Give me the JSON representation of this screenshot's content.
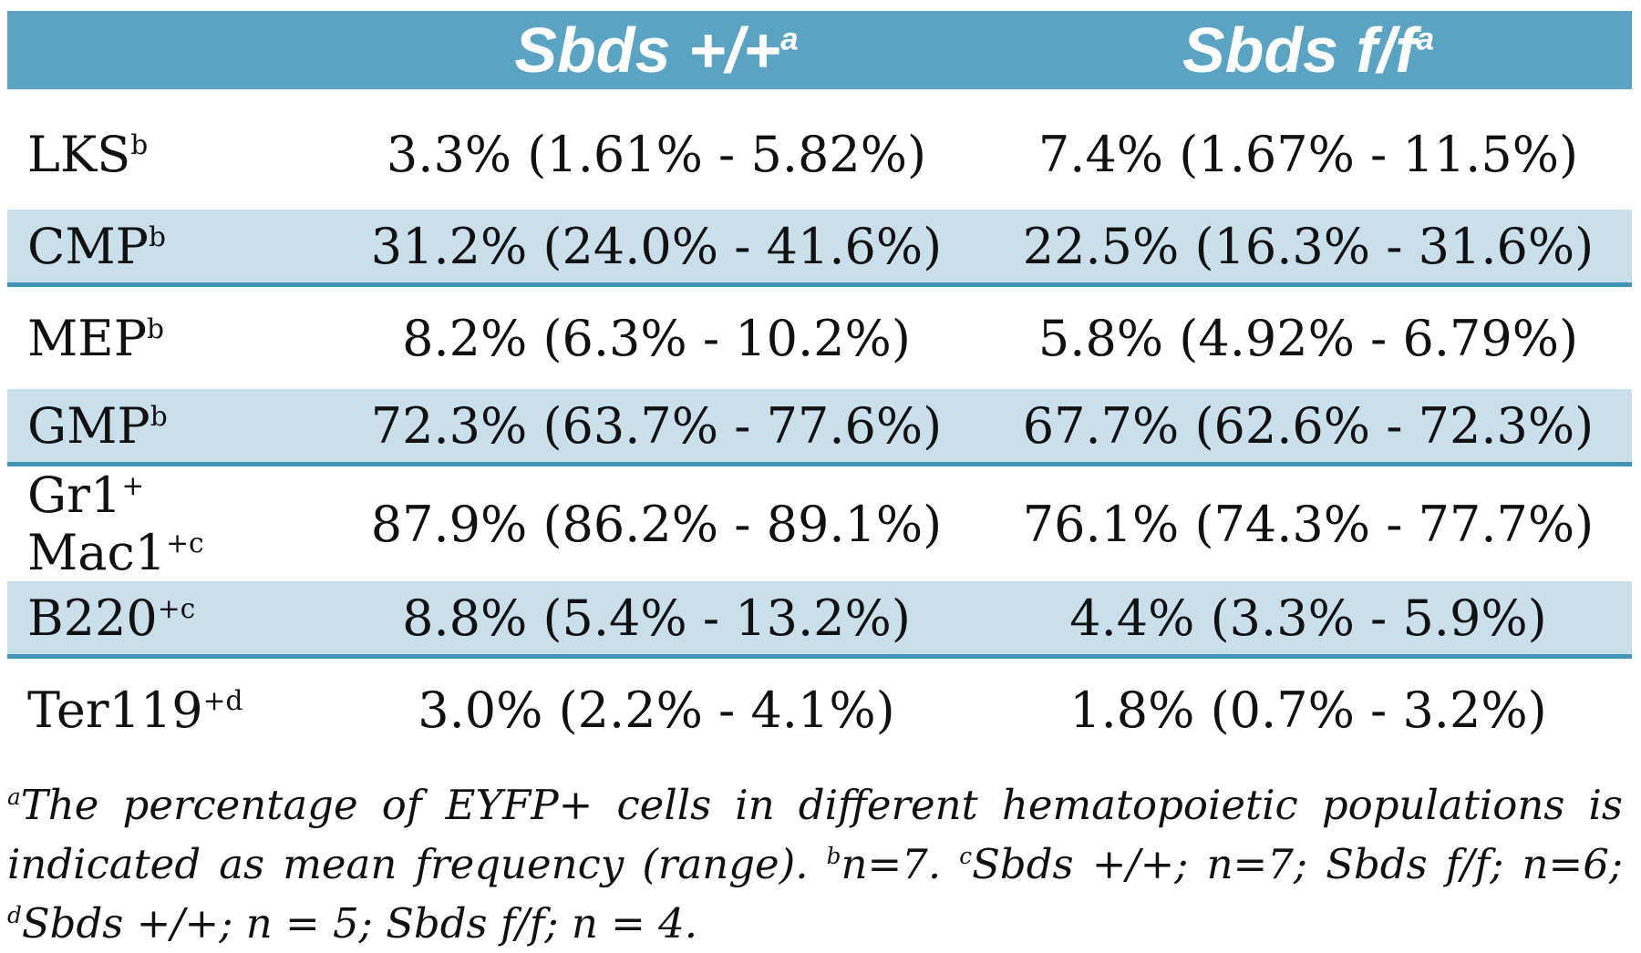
{
  "colors": {
    "header_bg": "#5AA3C2",
    "header_text": "#FFFFFF",
    "shaded_bg": "#C9E0EC",
    "divider": "#4293B5",
    "body_text": "#111111"
  },
  "table": {
    "columns": [
      {
        "parts": []
      },
      {
        "parts": [
          {
            "text": "Sbds +/+"
          },
          {
            "sup": "a"
          }
        ]
      },
      {
        "parts": [
          {
            "text": "Sbds f/f"
          },
          {
            "sup": "a"
          }
        ]
      }
    ],
    "rows": [
      {
        "label_parts": [
          {
            "text": "LKS"
          },
          {
            "sup": "b"
          }
        ],
        "values": [
          "3.3% (1.61% - 5.82%)",
          "7.4% (1.67% - 11.5%)"
        ],
        "shaded": false
      },
      {
        "label_parts": [
          {
            "text": "CMP"
          },
          {
            "sup": "b"
          }
        ],
        "values": [
          "31.2% (24.0% - 41.6%)",
          "22.5% (16.3% - 31.6%)"
        ],
        "shaded": true
      },
      {
        "label_parts": [
          {
            "text": "MEP"
          },
          {
            "sup": "b"
          }
        ],
        "values": [
          "8.2% (6.3% - 10.2%)",
          "5.8% (4.92% - 6.79%)"
        ],
        "shaded": false
      },
      {
        "label_parts": [
          {
            "text": "GMP"
          },
          {
            "sup": "b"
          }
        ],
        "values": [
          "72.3% (63.7% - 77.6%)",
          "67.7% (62.6% - 72.3%)"
        ],
        "shaded": true
      },
      {
        "label_parts": [
          {
            "text": "Gr1"
          },
          {
            "sup": "+"
          },
          {
            "text": " Mac1"
          },
          {
            "sup": "+c"
          }
        ],
        "values": [
          "87.9% (86.2% - 89.1%)",
          "76.1% (74.3% - 77.7%)"
        ],
        "shaded": false
      },
      {
        "label_parts": [
          {
            "text": "B220"
          },
          {
            "sup": "+c"
          }
        ],
        "values": [
          "8.8% (5.4% - 13.2%)",
          "4.4% (3.3% - 5.9%)"
        ],
        "shaded": true
      },
      {
        "label_parts": [
          {
            "text": "Ter119"
          },
          {
            "sup": "+d"
          }
        ],
        "values": [
          "3.0% (2.2% - 4.1%)",
          "1.8% (0.7% - 3.2%)"
        ],
        "shaded": false
      }
    ]
  },
  "footnote": {
    "parts": [
      {
        "sup": "a"
      },
      {
        "text": "The percentage of EYFP+ cells in different hematopoietic populations is indicated as mean frequency (range). "
      },
      {
        "sup": "b"
      },
      {
        "text": "n=7. "
      },
      {
        "sup": "c"
      },
      {
        "text": "Sbds +/+; n=7; Sbds f/f; n=6; "
      },
      {
        "sup": "d"
      },
      {
        "text": "Sbds +/+; n = 5; Sbds f/f; n = 4."
      }
    ]
  },
  "chart_data": {
    "type": "table",
    "title": "",
    "columns": [
      "",
      "Sbds +/+ (a)",
      "Sbds f/f (a)"
    ],
    "rows": [
      [
        "LKS (b)",
        "3.3% (1.61% - 5.82%)",
        "7.4% (1.67% - 11.5%)"
      ],
      [
        "CMP (b)",
        "31.2% (24.0% - 41.6%)",
        "22.5% (16.3% - 31.6%)"
      ],
      [
        "MEP (b)",
        "8.2% (6.3% - 10.2%)",
        "5.8% (4.92% - 6.79%)"
      ],
      [
        "GMP (b)",
        "72.3% (63.7% - 77.6%)",
        "67.7% (62.6% - 72.3%)"
      ],
      [
        "Gr1+ Mac1+ (c)",
        "87.9% (86.2% - 89.1%)",
        "76.1% (74.3% - 77.7%)"
      ],
      [
        "B220+ (c)",
        "8.8% (5.4% - 13.2%)",
        "4.4% (3.3% - 5.9%)"
      ],
      [
        "Ter119+ (d)",
        "3.0% (2.2% - 4.1%)",
        "1.8% (0.7% - 3.2%)"
      ]
    ]
  }
}
